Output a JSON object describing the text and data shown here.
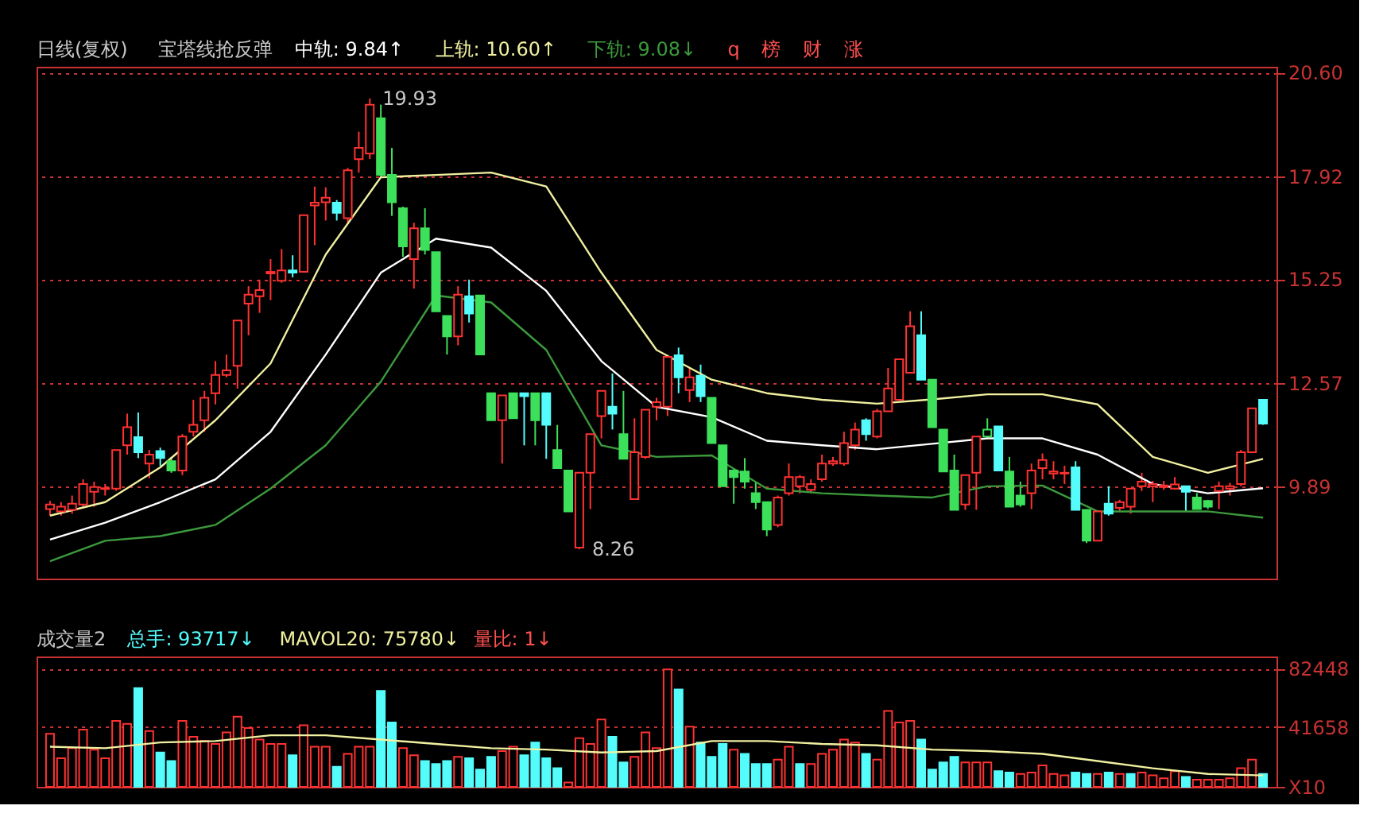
{
  "chart_data": [
    {
      "type": "candlestick",
      "title": "日线(复权)",
      "subtitle": "宝塔线抢反弹",
      "categories": [
        null,
        null,
        null,
        null,
        null,
        null,
        null,
        null,
        null,
        null,
        null,
        null,
        null,
        null,
        null,
        null,
        null,
        null,
        null,
        null,
        null,
        null,
        null,
        null,
        null,
        null,
        null,
        null,
        null,
        null,
        null,
        null,
        null,
        null,
        null,
        null,
        null,
        null,
        null,
        null,
        null,
        null,
        null,
        null,
        null,
        null,
        null,
        null,
        null,
        null,
        null,
        null,
        null,
        null,
        null,
        null,
        null,
        null,
        null,
        null,
        null,
        null,
        null,
        null,
        null,
        null,
        null,
        null,
        null,
        null,
        null,
        null,
        null,
        null,
        null,
        null,
        null,
        null,
        null,
        null,
        null,
        null,
        null,
        null,
        null,
        null,
        null,
        null,
        null,
        null,
        null,
        null,
        null,
        null,
        null,
        null,
        null,
        null,
        null,
        null,
        null,
        null,
        null,
        null,
        null,
        null,
        null,
        null,
        null,
        null,
        null
      ],
      "ohlc": [
        [
          9.3,
          9.51,
          9.13,
          9.42
        ],
        [
          9.24,
          9.48,
          9.13,
          9.36
        ],
        [
          9.28,
          9.65,
          9.18,
          9.44
        ],
        [
          9.42,
          10.07,
          9.36,
          9.95
        ],
        [
          9.75,
          10.01,
          9.36,
          9.87
        ],
        [
          9.82,
          9.95,
          9.65,
          9.84
        ],
        [
          9.83,
          10.83,
          9.77,
          10.83
        ],
        [
          10.95,
          11.77,
          10.71,
          11.42
        ],
        [
          11.16,
          11.8,
          10.62,
          10.77
        ],
        [
          10.48,
          10.83,
          10.1,
          10.71
        ],
        [
          10.8,
          10.89,
          10.42,
          10.62
        ],
        [
          10.54,
          10.65,
          10.24,
          10.3
        ],
        [
          10.3,
          11.24,
          10.18,
          11.18
        ],
        [
          11.3,
          12.13,
          11.18,
          11.48
        ],
        [
          11.6,
          12.36,
          11.3,
          12.18
        ],
        [
          12.3,
          13.13,
          12.01,
          12.77
        ],
        [
          12.77,
          13.3,
          12.71,
          12.89
        ],
        [
          13.01,
          14.18,
          12.42,
          14.18
        ],
        [
          14.62,
          15.07,
          13.8,
          14.85
        ],
        [
          14.81,
          15.24,
          14.38,
          14.97
        ],
        [
          15.4,
          15.77,
          14.71,
          15.44
        ],
        [
          15.21,
          16.03,
          15.16,
          15.48
        ],
        [
          15.48,
          15.87,
          15.3,
          15.42
        ],
        [
          15.44,
          16.91,
          15.42,
          16.91
        ],
        [
          17.16,
          17.65,
          16.13,
          17.23
        ],
        [
          17.24,
          17.63,
          16.77,
          17.36
        ],
        [
          17.23,
          17.3,
          16.77,
          16.97
        ],
        [
          16.83,
          18.13,
          16.71,
          18.07
        ],
        [
          18.36,
          19.07,
          18.01,
          18.65
        ],
        [
          18.5,
          19.93,
          18.36,
          19.77
        ],
        [
          19.42,
          19.77,
          17.89,
          17.95
        ],
        [
          17.95,
          18.65,
          16.89,
          17.24
        ],
        [
          17.09,
          17.13,
          15.83,
          16.1
        ],
        [
          15.77,
          16.71,
          15.01,
          16.57
        ],
        [
          16.57,
          17.09,
          15.89,
          16.01
        ],
        [
          15.95,
          15.95,
          14.42,
          14.42
        ],
        [
          14.3,
          14.3,
          13.3,
          13.77
        ],
        [
          13.77,
          15.07,
          13.54,
          14.85
        ],
        [
          14.81,
          15.24,
          14.13,
          14.36
        ],
        [
          14.83,
          14.83,
          13.3,
          13.3
        ],
        [
          12.3,
          12.3,
          11.6,
          11.6
        ],
        [
          11.6,
          12.24,
          10.48,
          12.24
        ],
        [
          12.3,
          12.3,
          11.65,
          11.65
        ],
        [
          12.3,
          12.3,
          10.95,
          12.22
        ],
        [
          12.3,
          12.3,
          10.95,
          11.6
        ],
        [
          12.3,
          12.3,
          10.6,
          11.48
        ],
        [
          10.83,
          11.48,
          10.36,
          10.36
        ],
        [
          10.3,
          10.3,
          9.24,
          9.24
        ],
        [
          8.3,
          10.24,
          8.26,
          10.24
        ],
        [
          10.24,
          11.24,
          9.3,
          11.24
        ],
        [
          11.71,
          12.36,
          11.13,
          12.36
        ],
        [
          11.95,
          12.81,
          11.36,
          11.77
        ],
        [
          11.24,
          12.36,
          10.6,
          10.6
        ],
        [
          9.56,
          11.65,
          9.56,
          10.77
        ],
        [
          10.65,
          11.87,
          10.6,
          11.87
        ],
        [
          11.95,
          12.18,
          11.6,
          12.07
        ],
        [
          11.95,
          13.24,
          11.71,
          13.24
        ],
        [
          13.28,
          13.48,
          12.3,
          12.71
        ],
        [
          12.38,
          12.95,
          12.07,
          12.71
        ],
        [
          12.75,
          13.04,
          12.07,
          12.22
        ],
        [
          12.18,
          12.18,
          11.01,
          11.01
        ],
        [
          10.95,
          10.95,
          9.89,
          9.89
        ],
        [
          10.3,
          10.36,
          9.44,
          10.13
        ],
        [
          10.27,
          10.62,
          9.83,
          10.01
        ],
        [
          9.71,
          10.01,
          9.3,
          9.48
        ],
        [
          9.48,
          9.48,
          8.6,
          8.77
        ],
        [
          8.89,
          9.65,
          8.83,
          9.6
        ],
        [
          9.71,
          10.48,
          9.65,
          10.13
        ],
        [
          9.89,
          10.18,
          9.71,
          10.13
        ],
        [
          9.8,
          10.07,
          9.71,
          9.95
        ],
        [
          10.07,
          10.71,
          10.01,
          10.48
        ],
        [
          10.48,
          10.65,
          10.42,
          10.54
        ],
        [
          10.48,
          11.3,
          10.42,
          11.01
        ],
        [
          10.95,
          11.54,
          10.83,
          11.36
        ],
        [
          11.6,
          11.65,
          11.07,
          11.24
        ],
        [
          11.18,
          11.89,
          11.13,
          11.83
        ],
        [
          11.83,
          12.95,
          11.83,
          12.42
        ],
        [
          12.13,
          13.18,
          12.13,
          13.18
        ],
        [
          12.83,
          14.42,
          12.83,
          14.03
        ],
        [
          13.8,
          14.42,
          12.65,
          12.65
        ],
        [
          12.65,
          12.65,
          11.42,
          11.42
        ],
        [
          11.36,
          11.36,
          10.27,
          10.27
        ],
        [
          10.3,
          10.71,
          9.28,
          9.28
        ],
        [
          9.42,
          10.18,
          9.28,
          10.18
        ],
        [
          10.24,
          11.18,
          9.28,
          11.18
        ],
        [
          11.18,
          11.65,
          11.13,
          11.36
        ],
        [
          11.44,
          11.44,
          10.3,
          10.3
        ],
        [
          10.27,
          10.65,
          9.36,
          9.36
        ],
        [
          9.65,
          10.01,
          9.36,
          9.42
        ],
        [
          9.71,
          10.48,
          9.3,
          10.3
        ],
        [
          10.36,
          10.74,
          10.07,
          10.57
        ],
        [
          10.22,
          10.54,
          10.07,
          10.27
        ],
        [
          10.22,
          10.42,
          9.95,
          10.24
        ],
        [
          10.38,
          10.54,
          9.28,
          9.28
        ],
        [
          9.28,
          9.28,
          8.42,
          8.48
        ],
        [
          8.48,
          9.24,
          8.48,
          9.24
        ],
        [
          9.44,
          9.89,
          9.13,
          9.18
        ],
        [
          9.33,
          9.54,
          9.24,
          9.48
        ],
        [
          9.36,
          9.83,
          9.18,
          9.83
        ],
        [
          9.89,
          10.24,
          9.77,
          10.01
        ],
        [
          9.89,
          10.03,
          9.48,
          9.95
        ],
        [
          9.87,
          10.03,
          9.8,
          9.91
        ],
        [
          9.83,
          10.13,
          9.8,
          9.94
        ],
        [
          9.89,
          9.89,
          9.24,
          9.75
        ],
        [
          9.6,
          9.71,
          9.3,
          9.3
        ],
        [
          9.51,
          9.54,
          9.3,
          9.36
        ],
        [
          9.77,
          10.01,
          9.3,
          9.89
        ],
        [
          9.83,
          9.98,
          9.65,
          9.89
        ],
        [
          9.95,
          10.83,
          9.89,
          10.77
        ],
        [
          10.77,
          11.91,
          10.77,
          11.91
        ],
        [
          12.13,
          12.13,
          11.48,
          11.51
        ]
      ],
      "colors": [
        "#ff3232",
        "#ff3232",
        "#ff3232",
        "#ff3232",
        "#ff3232",
        "#ff3232",
        "#ff3232",
        "#ff3232",
        "#54fcfc",
        "#ff3232",
        "#54fcfc",
        "#3ce05a",
        "#ff3232",
        "#ff3232",
        "#ff3232",
        "#ff3232",
        "#ff3232",
        "#ff3232",
        "#ff3232",
        "#ff3232",
        "#ff3232",
        "#ff3232",
        "#54fcfc",
        "#ff3232",
        "#ff3232",
        "#ff3232",
        "#54fcfc",
        "#ff3232",
        "#ff3232",
        "#ff3232",
        "#3ce05a",
        "#3ce05a",
        "#3ce05a",
        "#ff3232",
        "#3ce05a",
        "#3ce05a",
        "#3ce05a",
        "#ff3232",
        "#54fcfc",
        "#3ce05a",
        "#3ce05a",
        "#ff3232",
        "#3ce05a",
        "#54fcfc",
        "#3ce05a",
        "#54fcfc",
        "#3ce05a",
        "#3ce05a",
        "#ff3232",
        "#ff3232",
        "#ff3232",
        "#54fcfc",
        "#3ce05a",
        "#ff3232",
        "#ff3232",
        "#ff3232",
        "#ff3232",
        "#54fcfc",
        "#ff3232",
        "#54fcfc",
        "#3ce05a",
        "#3ce05a",
        "#3ce05a",
        "#3ce05a",
        "#3ce05a",
        "#3ce05a",
        "#ff3232",
        "#ff3232",
        "#ff3232",
        "#ff3232",
        "#ff3232",
        "#ff3232",
        "#ff3232",
        "#ff3232",
        "#54fcfc",
        "#ff3232",
        "#ff3232",
        "#ff3232",
        "#ff3232",
        "#54fcfc",
        "#3ce05a",
        "#3ce05a",
        "#3ce05a",
        "#ff3232",
        "#ff3232",
        "#3ce05a",
        "#54fcfc",
        "#3ce05a",
        "#3ce05a",
        "#ff3232",
        "#ff3232",
        "#ff3232",
        "#ff3232",
        "#54fcfc",
        "#3ce05a",
        "#ff3232",
        "#54fcfc",
        "#ff3232",
        "#ff3232",
        "#ff3232",
        "#ff3232",
        "#ff3232",
        "#ff3232",
        "#54fcfc",
        "#3ce05a",
        "#3ce05a",
        "#ff3232",
        "#ff3232",
        "#ff3232",
        "#ff3232",
        "#54fcfc"
      ],
      "series": [
        {
          "name": "中轨: 9.84↑",
          "type": "line",
          "color": "#ffffff",
          "values": [
            8.51,
            null,
            null,
            null,
            null,
            8.95,
            null,
            null,
            null,
            null,
            9.48,
            null,
            null,
            null,
            null,
            10.07,
            null,
            null,
            null,
            null,
            11.3,
            null,
            null,
            null,
            null,
            13.3,
            null,
            null,
            null,
            null,
            15.42,
            null,
            null,
            null,
            null,
            16.3,
            null,
            null,
            null,
            null,
            16.07,
            null,
            null,
            null,
            null,
            14.95,
            null,
            null,
            null,
            null,
            13.13,
            null,
            null,
            null,
            null,
            11.95,
            null,
            null,
            null,
            null,
            11.68,
            null,
            null,
            null,
            null,
            11.07,
            null,
            null,
            null,
            null,
            10.95,
            null,
            null,
            null,
            null,
            10.85,
            null,
            null,
            null,
            null,
            10.99,
            null,
            null,
            null,
            null,
            11.13,
            null,
            null,
            null,
            null,
            11.13,
            null,
            null,
            null,
            null,
            10.71,
            null,
            null,
            null,
            null,
            9.95,
            null,
            null,
            null,
            null,
            9.71,
            null,
            null,
            null,
            null,
            9.84
          ]
        },
        {
          "name": "上轨: 10.60↑",
          "type": "line",
          "color": "#f0f0a0",
          "values": [
            9.13,
            null,
            null,
            null,
            null,
            9.48,
            null,
            null,
            null,
            null,
            10.38,
            null,
            null,
            null,
            null,
            11.6,
            null,
            null,
            null,
            null,
            13.07,
            null,
            null,
            null,
            null,
            15.89,
            null,
            null,
            null,
            null,
            17.89,
            null,
            null,
            null,
            null,
            17.95,
            null,
            null,
            null,
            null,
            18.01,
            null,
            null,
            null,
            null,
            17.65,
            null,
            null,
            null,
            null,
            15.42,
            null,
            null,
            null,
            null,
            13.42,
            null,
            null,
            null,
            null,
            12.65,
            null,
            null,
            null,
            null,
            12.3,
            null,
            null,
            null,
            null,
            12.13,
            null,
            null,
            null,
            null,
            12.03,
            null,
            null,
            null,
            null,
            12.14,
            null,
            null,
            null,
            null,
            12.27,
            null,
            null,
            null,
            null,
            12.27,
            null,
            null,
            null,
            null,
            12.01,
            null,
            null,
            null,
            null,
            10.65,
            null,
            null,
            null,
            null,
            10.24,
            null,
            null,
            null,
            null,
            10.6
          ]
        },
        {
          "name": "下轨: 9.08↓",
          "type": "line",
          "color": "#3c9a3c",
          "values": [
            7.95,
            null,
            null,
            null,
            null,
            8.48,
            null,
            null,
            null,
            null,
            8.6,
            null,
            null,
            null,
            null,
            8.89,
            null,
            null,
            null,
            null,
            9.83,
            null,
            null,
            null,
            null,
            10.95,
            null,
            null,
            null,
            null,
            12.6,
            null,
            null,
            null,
            null,
            14.83,
            null,
            null,
            null,
            null,
            14.65,
            null,
            null,
            null,
            null,
            13.42,
            null,
            null,
            null,
            null,
            10.95,
            null,
            null,
            null,
            null,
            10.65,
            null,
            null,
            null,
            null,
            10.69,
            null,
            null,
            null,
            null,
            9.83,
            null,
            null,
            null,
            null,
            9.71,
            null,
            null,
            null,
            null,
            9.65,
            null,
            null,
            null,
            null,
            9.6,
            null,
            null,
            null,
            null,
            9.89,
            null,
            null,
            null,
            null,
            9.91,
            null,
            null,
            null,
            null,
            9.24,
            null,
            null,
            null,
            null,
            9.24,
            null,
            null,
            null,
            null,
            9.24,
            null,
            null,
            null,
            null,
            9.08
          ]
        }
      ],
      "annotations": [
        "19.93",
        "8.26",
        "q",
        "榜",
        "财",
        "涨"
      ],
      "ylim": [
        7.5,
        20.75
      ],
      "yticks": [
        9.89,
        12.57,
        15.25,
        17.92,
        {
          "value": 20.6,
          "label": "20.60"
        }
      ],
      "grid": "y",
      "tick_labels": "y"
    },
    {
      "type": "bar",
      "title": "成交量2",
      "categories": [
        null,
        null,
        null,
        null,
        null,
        null,
        null,
        null,
        null,
        null,
        null,
        null,
        null,
        null,
        null,
        null,
        null,
        null,
        null,
        null,
        null,
        null,
        null,
        null,
        null,
        null,
        null,
        null,
        null,
        null,
        null,
        null,
        null,
        null,
        null,
        null,
        null,
        null,
        null,
        null,
        null,
        null,
        null,
        null,
        null,
        null,
        null,
        null,
        null,
        null,
        null,
        null,
        null,
        null,
        null,
        null,
        null,
        null,
        null,
        null,
        null,
        null,
        null,
        null,
        null,
        null,
        null,
        null,
        null,
        null,
        null,
        null,
        null,
        null,
        null,
        null,
        null,
        null,
        null,
        null,
        null,
        null,
        null,
        null,
        null,
        null,
        null,
        null,
        null,
        null,
        null,
        null,
        null,
        null,
        null,
        null,
        null,
        null,
        null,
        null,
        null,
        null,
        null,
        null,
        null,
        null,
        null,
        null,
        null,
        null,
        null
      ],
      "series": [
        {
          "name": "总手: 93717↓",
          "type": "bar",
          "color": "#54fcfc",
          "values": [
            37000,
            20000,
            27000,
            40000,
            26000,
            20000,
            46000,
            44000,
            69000,
            39000,
            24000,
            18000,
            46000,
            35000,
            32000,
            30000,
            38000,
            49000,
            41000,
            33000,
            30000,
            30000,
            22000,
            43000,
            28000,
            28000,
            14000,
            23000,
            28000,
            28000,
            67000,
            45000,
            27000,
            22000,
            18000,
            16000,
            18000,
            21000,
            20000,
            12000,
            21000,
            25000,
            28000,
            22000,
            31000,
            20000,
            13000,
            3000,
            34000,
            30000,
            47000,
            35000,
            17000,
            21000,
            38000,
            27000,
            82000,
            68000,
            42000,
            31000,
            21000,
            30000,
            26000,
            23000,
            16000,
            16000,
            19000,
            28000,
            16000,
            16000,
            23000,
            26000,
            33000,
            31000,
            23000,
            19000,
            53000,
            45000,
            46000,
            33000,
            12000,
            17000,
            21000,
            17000,
            17000,
            17000,
            11000,
            10000,
            9000,
            10000,
            15000,
            9000,
            8000,
            10000,
            9000,
            9000,
            10000,
            9000,
            9000,
            10000,
            8000,
            6000,
            11000,
            7000,
            5000,
            5000,
            5000,
            6000,
            13000,
            19000,
            9000
          ],
          "colors": [
            "#ff3232",
            "#ff3232",
            "#ff3232",
            "#ff3232",
            "#ff3232",
            "#ff3232",
            "#ff3232",
            "#ff3232",
            "#54fcfc",
            "#ff3232",
            "#54fcfc",
            "#54fcfc",
            "#ff3232",
            "#ff3232",
            "#ff3232",
            "#ff3232",
            "#ff3232",
            "#ff3232",
            "#ff3232",
            "#ff3232",
            "#ff3232",
            "#ff3232",
            "#54fcfc",
            "#ff3232",
            "#ff3232",
            "#ff3232",
            "#54fcfc",
            "#ff3232",
            "#ff3232",
            "#ff3232",
            "#54fcfc",
            "#54fcfc",
            "#ff3232",
            "#ff3232",
            "#54fcfc",
            "#54fcfc",
            "#54fcfc",
            "#ff3232",
            "#54fcfc",
            "#54fcfc",
            "#54fcfc",
            "#ff3232",
            "#ff3232",
            "#54fcfc",
            "#54fcfc",
            "#54fcfc",
            "#54fcfc",
            "#ff3232",
            "#ff3232",
            "#ff3232",
            "#ff3232",
            "#54fcfc",
            "#54fcfc",
            "#ff3232",
            "#ff3232",
            "#ff3232",
            "#ff3232",
            "#54fcfc",
            "#ff3232",
            "#54fcfc",
            "#54fcfc",
            "#54fcfc",
            "#ff3232",
            "#54fcfc",
            "#54fcfc",
            "#54fcfc",
            "#ff3232",
            "#ff3232",
            "#54fcfc",
            "#ff3232",
            "#ff3232",
            "#ff3232",
            "#ff3232",
            "#ff3232",
            "#54fcfc",
            "#ff3232",
            "#ff3232",
            "#ff3232",
            "#ff3232",
            "#54fcfc",
            "#54fcfc",
            "#54fcfc",
            "#54fcfc",
            "#ff3232",
            "#ff3232",
            "#ff3232",
            "#54fcfc",
            "#54fcfc",
            "#ff3232",
            "#ff3232",
            "#ff3232",
            "#ff3232",
            "#ff3232",
            "#54fcfc",
            "#54fcfc",
            "#ff3232",
            "#54fcfc",
            "#ff3232",
            "#54fcfc",
            "#ff3232",
            "#ff3232",
            "#ff3232",
            "#ff3232",
            "#54fcfc",
            "#ff3232",
            "#ff3232",
            "#ff3232",
            "#ff3232",
            "#ff3232",
            "#ff3232",
            "#54fcfc"
          ]
        },
        {
          "name": "MAVOL20: 75780↓",
          "type": "line",
          "color": "#f0f0a0",
          "values": [
            28000,
            null,
            null,
            null,
            null,
            27000,
            null,
            null,
            null,
            null,
            31000,
            null,
            null,
            null,
            null,
            32000,
            null,
            null,
            null,
            null,
            36000,
            null,
            null,
            null,
            null,
            36000,
            null,
            null,
            null,
            null,
            33000,
            null,
            null,
            null,
            null,
            30000,
            null,
            null,
            null,
            null,
            27000,
            null,
            null,
            null,
            null,
            26000,
            null,
            null,
            null,
            null,
            24000,
            null,
            null,
            null,
            null,
            25000,
            null,
            null,
            null,
            null,
            32000,
            null,
            null,
            null,
            null,
            32000,
            null,
            null,
            null,
            null,
            30000,
            null,
            null,
            null,
            null,
            29000,
            null,
            null,
            null,
            null,
            26000,
            null,
            null,
            null,
            null,
            25000,
            null,
            null,
            null,
            null,
            23000,
            null,
            null,
            null,
            null,
            18000,
            null,
            null,
            null,
            null,
            13000,
            null,
            null,
            null,
            null,
            9000,
            null,
            null,
            null,
            null,
            8000
          ]
        }
      ],
      "annotations": [
        "量比: 1↓"
      ],
      "ylim": [
        0,
        91000
      ],
      "yticks": [
        {
          "value": 0,
          "label": "X10"
        },
        41658,
        82448
      ],
      "grid": "y",
      "tick_labels": "y"
    }
  ]
}
